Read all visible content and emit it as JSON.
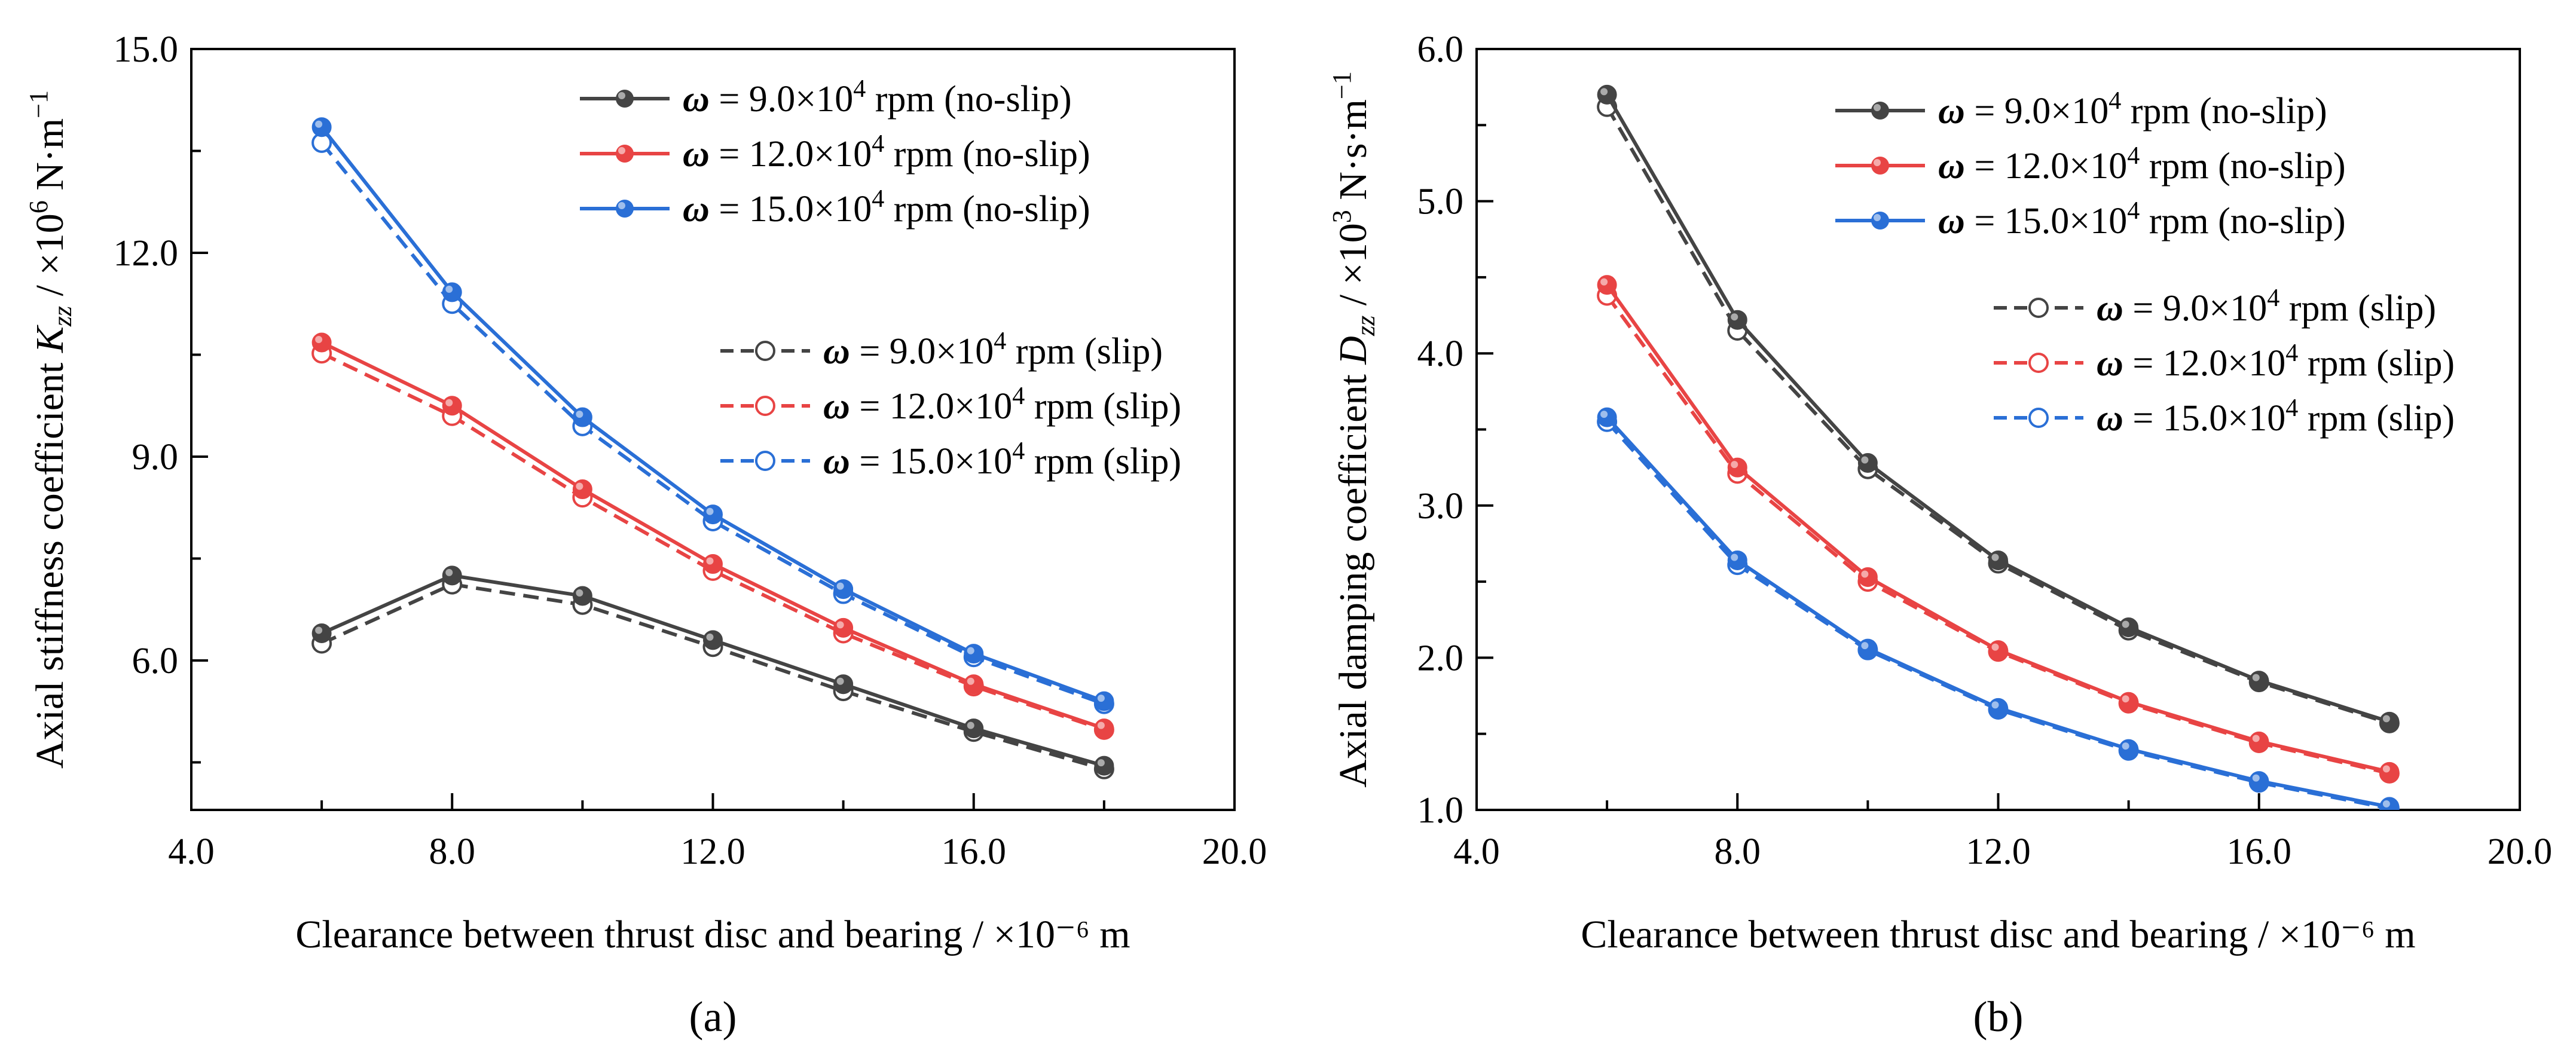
{
  "chart_data": [
    {
      "type": "line",
      "panel_label": "(a)",
      "xlabel": "Clearance between thrust disc and bearing / ×10⁻⁶ m",
      "ylabel": "Axial stiffness coefficient K_zz / ×10⁶ N·m⁻¹",
      "ylabel_parts": {
        "main": "Axial stiffness coefficient ",
        "sym": "K",
        "sub": "zz",
        "unit": " / ×10",
        "exp": "6",
        "unit2": " N·m",
        "exp2": "−1"
      },
      "xlim": [
        4.0,
        20.0
      ],
      "ylim": [
        3.8,
        15.0
      ],
      "xticks": [
        4.0,
        8.0,
        12.0,
        16.0,
        20.0
      ],
      "xtick_labels": [
        "4.0",
        "8.0",
        "12.0",
        "16.0",
        "20.0"
      ],
      "yticks": [
        6.0,
        9.0,
        12.0,
        15.0
      ],
      "ytick_labels": [
        "6.0",
        "9.0",
        "12.0",
        "15.0"
      ],
      "grid": false,
      "legend_groups": [
        {
          "placement": "top-right",
          "series": [
            0,
            1,
            2
          ]
        },
        {
          "placement": "upper-right",
          "series": [
            3,
            4,
            5
          ]
        }
      ],
      "x": [
        6,
        8,
        10,
        12,
        14,
        16,
        18
      ],
      "series": [
        {
          "name": "9.0×10⁴ rpm (no-slip)",
          "name_parts": [
            "ω",
            " = 9.0×10",
            "4",
            " rpm (no-slip)"
          ],
          "style": "solid",
          "color": "#444444",
          "values": [
            6.4,
            7.25,
            6.95,
            6.3,
            5.65,
            5.0,
            4.45
          ]
        },
        {
          "name": "12.0×10⁴ rpm (no-slip)",
          "name_parts": [
            "ω",
            " = 12.0×10",
            "4",
            " rpm (no-slip)"
          ],
          "style": "solid",
          "color": "#e84444",
          "values": [
            10.68,
            9.75,
            8.52,
            7.42,
            6.48,
            5.65,
            5.0
          ]
        },
        {
          "name": "15.0×10⁴ rpm (no-slip)",
          "name_parts": [
            "ω",
            " = 15.0×10",
            "4",
            " rpm (no-slip)"
          ],
          "style": "solid",
          "color": "#2a6fd6",
          "values": [
            13.85,
            11.42,
            9.58,
            8.15,
            7.05,
            6.1,
            5.4
          ]
        },
        {
          "name": "9.0×10⁴ rpm (slip)",
          "name_parts": [
            "ω",
            " = 9.0×10",
            "4",
            " rpm (slip)"
          ],
          "style": "dashed",
          "color": "#444444",
          "values": [
            6.25,
            7.12,
            6.82,
            6.2,
            5.55,
            4.95,
            4.4
          ]
        },
        {
          "name": "12.0×10⁴ rpm (slip)",
          "name_parts": [
            "ω",
            " = 12.0×10",
            "4",
            " rpm (slip)"
          ],
          "style": "dashed",
          "color": "#e84444",
          "values": [
            10.52,
            9.6,
            8.4,
            7.32,
            6.4,
            5.62,
            4.98
          ]
        },
        {
          "name": "15.0×10⁴ rpm (slip)",
          "name_parts": [
            "ω",
            " = 15.0×10",
            "4",
            " rpm (slip)"
          ],
          "style": "dashed",
          "color": "#2a6fd6",
          "values": [
            13.62,
            11.25,
            9.45,
            8.05,
            6.98,
            6.05,
            5.36
          ]
        }
      ]
    },
    {
      "type": "line",
      "panel_label": "(b)",
      "xlabel": "Clearance between thrust disc and bearing / ×10⁻⁶ m",
      "ylabel": "Axial damping coefficient D_zz / ×10³ N·s·m⁻¹",
      "ylabel_parts": {
        "main": "Axial damping coefficient ",
        "sym": "D",
        "sub": "zz",
        "unit": " / ×10",
        "exp": "3",
        "unit2": " N·s·m",
        "exp2": "−1"
      },
      "xlim": [
        4.0,
        20.0
      ],
      "ylim": [
        1.0,
        6.0
      ],
      "xticks": [
        4.0,
        8.0,
        12.0,
        16.0,
        20.0
      ],
      "xtick_labels": [
        "4.0",
        "8.0",
        "12.0",
        "16.0",
        "20.0"
      ],
      "yticks": [
        1.0,
        2.0,
        3.0,
        4.0,
        5.0,
        6.0
      ],
      "ytick_labels": [
        "1.0",
        "2.0",
        "3.0",
        "4.0",
        "5.0",
        "6.0"
      ],
      "grid": false,
      "legend_groups": [
        {
          "placement": "top-right",
          "series": [
            0,
            1,
            2
          ]
        },
        {
          "placement": "upper-right",
          "series": [
            3,
            4,
            5
          ]
        }
      ],
      "x": [
        6,
        8,
        10,
        12,
        14,
        16,
        18
      ],
      "series": [
        {
          "name": "9.0×10⁴ rpm (no-slip)",
          "name_parts": [
            "ω",
            " = 9.0×10",
            "4",
            " rpm (no-slip)"
          ],
          "style": "solid",
          "color": "#444444",
          "values": [
            5.7,
            4.22,
            3.28,
            2.64,
            2.2,
            1.85,
            1.58
          ]
        },
        {
          "name": "12.0×10⁴ rpm (no-slip)",
          "name_parts": [
            "ω",
            " = 12.0×10",
            "4",
            " rpm (no-slip)"
          ],
          "style": "solid",
          "color": "#e84444",
          "values": [
            4.45,
            3.25,
            2.53,
            2.05,
            1.71,
            1.45,
            1.25
          ]
        },
        {
          "name": "15.0×10⁴ rpm (no-slip)",
          "name_parts": [
            "ω",
            " = 15.0×10",
            "4",
            " rpm (no-slip)"
          ],
          "style": "solid",
          "color": "#2a6fd6",
          "values": [
            3.58,
            2.64,
            2.06,
            1.67,
            1.4,
            1.19,
            1.02
          ]
        },
        {
          "name": "9.0×10⁴ rpm (slip)",
          "name_parts": [
            "ω",
            " = 9.0×10",
            "4",
            " rpm (slip)"
          ],
          "style": "dashed",
          "color": "#444444",
          "values": [
            5.62,
            4.15,
            3.24,
            2.62,
            2.18,
            1.84,
            1.57
          ]
        },
        {
          "name": "12.0×10⁴ rpm (slip)",
          "name_parts": [
            "ω",
            " = 12.0×10",
            "4",
            " rpm (slip)"
          ],
          "style": "dashed",
          "color": "#e84444",
          "values": [
            4.38,
            3.21,
            2.5,
            2.04,
            1.7,
            1.44,
            1.24
          ]
        },
        {
          "name": "15.0×10⁴ rpm (slip)",
          "name_parts": [
            "ω",
            " = 15.0×10",
            "4",
            " rpm (slip)"
          ],
          "style": "dashed",
          "color": "#2a6fd6",
          "values": [
            3.55,
            2.61,
            2.05,
            1.66,
            1.39,
            1.18,
            1.01
          ]
        }
      ]
    }
  ]
}
